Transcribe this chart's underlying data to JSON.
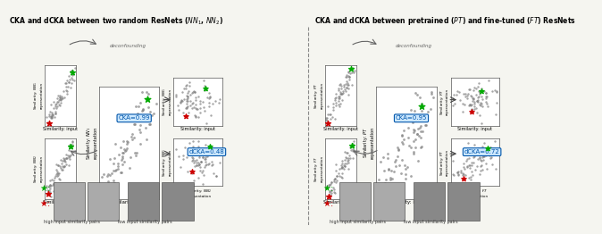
{
  "fig_width": 6.4,
  "fig_height": 2.42,
  "background_color": "#f5f5f0",
  "left_title": "CKA and dCKA between two random ResNets ($\\mathit{NN}_1$, $\\mathit{NN}_2$)",
  "right_title": "CKA and dCKA between pretrained ($\\mathit{PT}$) and fine-tuned ($\\mathit{FT}$) ResNets",
  "left_deconf_label": "deconfounding",
  "right_deconf_label": "deconfounding",
  "cka_left_val": "CKA=0.99",
  "dcka_left_val": "dCKA=0.48",
  "cka_right_val": "CKA=0.95",
  "dcka_right_val": "dCKA=0.72",
  "scatter_color": "#808080",
  "highlight_green": "#00aa00",
  "highlight_red": "#cc0000",
  "annotation_box_color": "#cce8ff",
  "annotation_box_edge": "#0055aa",
  "annotation_text_color": "#0055aa",
  "divider_color": "#888888",
  "arrow_color": "#444444"
}
